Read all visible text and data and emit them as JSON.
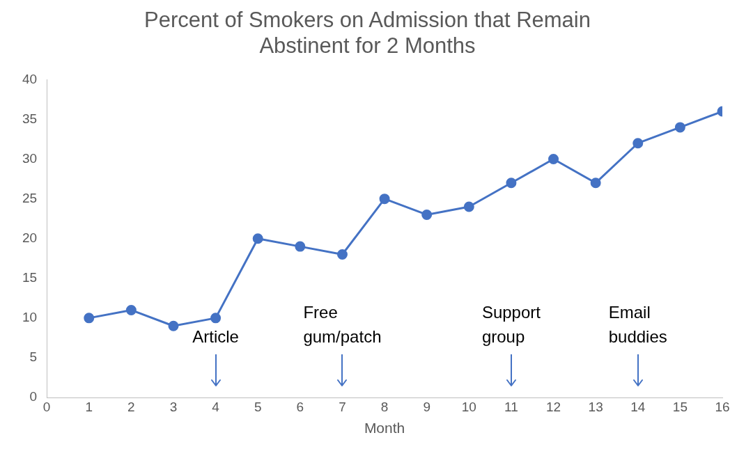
{
  "chart_data": {
    "type": "line",
    "title": "Percent of Smokers on Admission that Remain Abstinent for 2 Months",
    "xlabel": "Month",
    "x": [
      1,
      2,
      3,
      4,
      5,
      6,
      7,
      8,
      9,
      10,
      11,
      12,
      13,
      14,
      15,
      16
    ],
    "series": [
      {
        "color": "#4472c4",
        "values": [
          10,
          11,
          9,
          10,
          20,
          19,
          18,
          25,
          23,
          24,
          27,
          30,
          27,
          32,
          34,
          36
        ]
      }
    ],
    "xlim": [
      0,
      16
    ],
    "xticks": [
      0,
      1,
      2,
      3,
      4,
      5,
      6,
      7,
      8,
      9,
      10,
      11,
      12,
      13,
      14,
      15,
      16
    ],
    "ylim": [
      0,
      40
    ],
    "yticks": [
      0,
      5,
      10,
      15,
      20,
      25,
      30,
      35,
      40
    ],
    "grid": false,
    "legend": false,
    "marker": "circle",
    "line_style": "solid",
    "ref_lines": [
      {
        "axis": "x",
        "value": 4,
        "label": "Article",
        "color": "#4472c4"
      },
      {
        "axis": "x",
        "value": 7,
        "label": "Free gum/patch",
        "color": "#4472c4"
      },
      {
        "axis": "x",
        "value": 11,
        "label": "Support group",
        "color": "#4472c4"
      },
      {
        "axis": "x",
        "value": 14,
        "label": "Email buddies",
        "color": "#4472c4"
      }
    ]
  }
}
